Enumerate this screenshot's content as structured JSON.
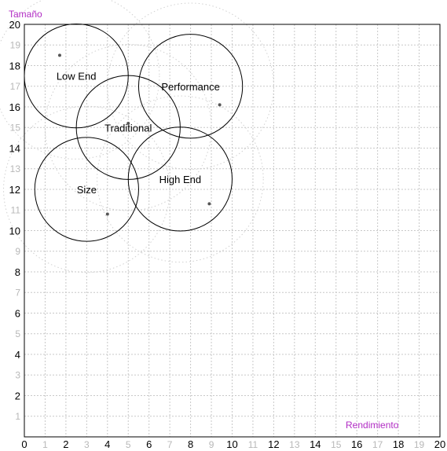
{
  "chart_data": {
    "type": "scatter",
    "title": "",
    "xlabel": "Rendimiento",
    "ylabel": "Tamaño",
    "xlim": [
      0,
      20
    ],
    "ylim": [
      0,
      20
    ],
    "grid": true,
    "x_ticks_major": [
      0,
      2,
      4,
      6,
      8,
      10,
      12,
      14,
      16,
      18,
      20
    ],
    "x_ticks_minor": [
      1,
      3,
      5,
      7,
      9,
      11,
      13,
      15,
      17,
      19
    ],
    "y_ticks_major": [
      0,
      2,
      4,
      6,
      8,
      10,
      12,
      14,
      16,
      18,
      20
    ],
    "y_ticks_minor": [
      1,
      3,
      5,
      7,
      9,
      11,
      13,
      15,
      17,
      19
    ],
    "segments": [
      {
        "name": "Low End",
        "center": [
          2.5,
          17.5
        ],
        "inner_radius": 2.5,
        "outer_radius": 4,
        "ideal_point": [
          1.7,
          18.5
        ]
      },
      {
        "name": "Performance",
        "center": [
          8.0,
          17.0
        ],
        "inner_radius": 2.5,
        "outer_radius": 4,
        "ideal_point": [
          9.4,
          16.1
        ]
      },
      {
        "name": "Traditional",
        "center": [
          5.0,
          15.0
        ],
        "inner_radius": 2.5,
        "outer_radius": 4,
        "ideal_point": [
          5.0,
          15.2
        ]
      },
      {
        "name": "Size",
        "center": [
          3.0,
          12.0
        ],
        "inner_radius": 2.5,
        "outer_radius": 4,
        "ideal_point": [
          4.0,
          10.8
        ]
      },
      {
        "name": "High End",
        "center": [
          7.5,
          12.5
        ],
        "inner_radius": 2.5,
        "outer_radius": 4,
        "ideal_point": [
          8.9,
          11.3
        ]
      }
    ]
  }
}
